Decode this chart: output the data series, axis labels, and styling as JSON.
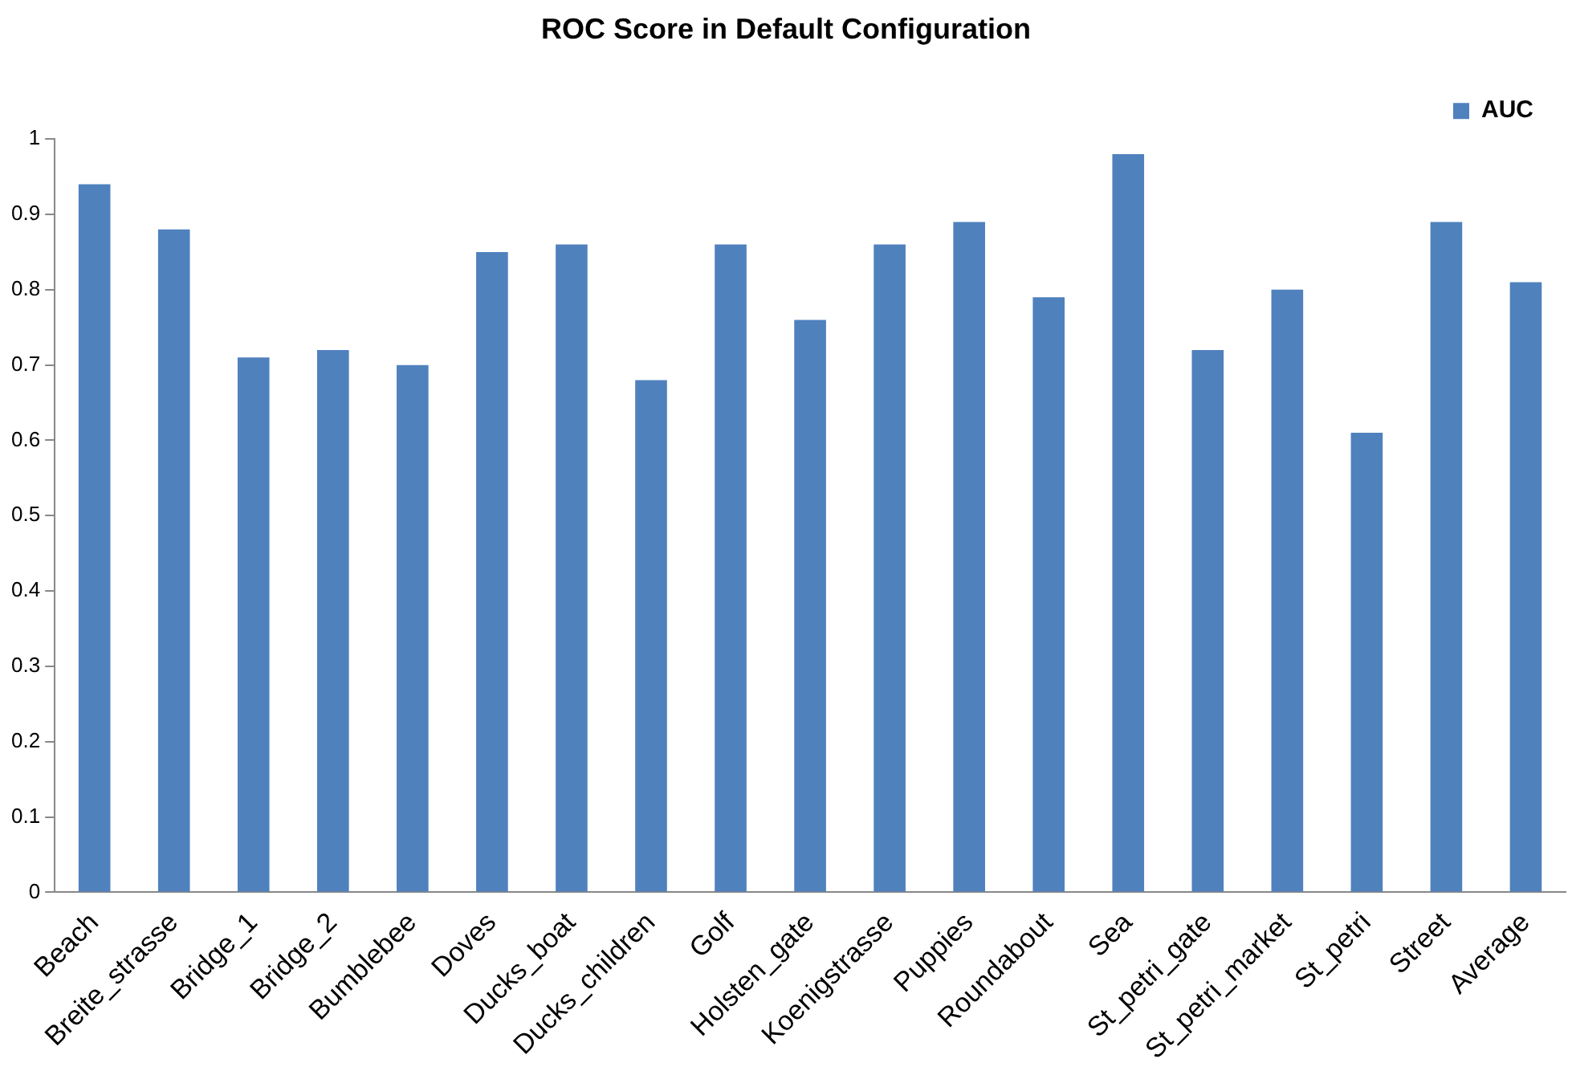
{
  "chart_data": {
    "type": "bar",
    "title": "ROC Score in Default Configuration",
    "categories": [
      "Beach",
      "Breite_strasse",
      "Bridge_1",
      "Bridge_2",
      "Bumblebee",
      "Doves",
      "Ducks_boat",
      "Ducks_children",
      "Golf",
      "Holsten_gate",
      "Koenigstrasse",
      "Puppies",
      "Roundabout",
      "Sea",
      "St_petri_gate",
      "St_petri_market",
      "St_petri",
      "Street",
      "Average"
    ],
    "series": [
      {
        "name": "AUC",
        "color": "#4f81bd",
        "values": [
          0.94,
          0.88,
          0.71,
          0.72,
          0.7,
          0.85,
          0.86,
          0.68,
          0.86,
          0.76,
          0.86,
          0.89,
          0.79,
          0.98,
          0.72,
          0.8,
          0.61,
          0.89,
          0.81
        ]
      }
    ],
    "ylim": [
      0,
      1
    ],
    "yticks": [
      0,
      0.1,
      0.2,
      0.3,
      0.4,
      0.5,
      0.6,
      0.7,
      0.8,
      0.9,
      1
    ],
    "grid": false,
    "legend": "top right"
  }
}
